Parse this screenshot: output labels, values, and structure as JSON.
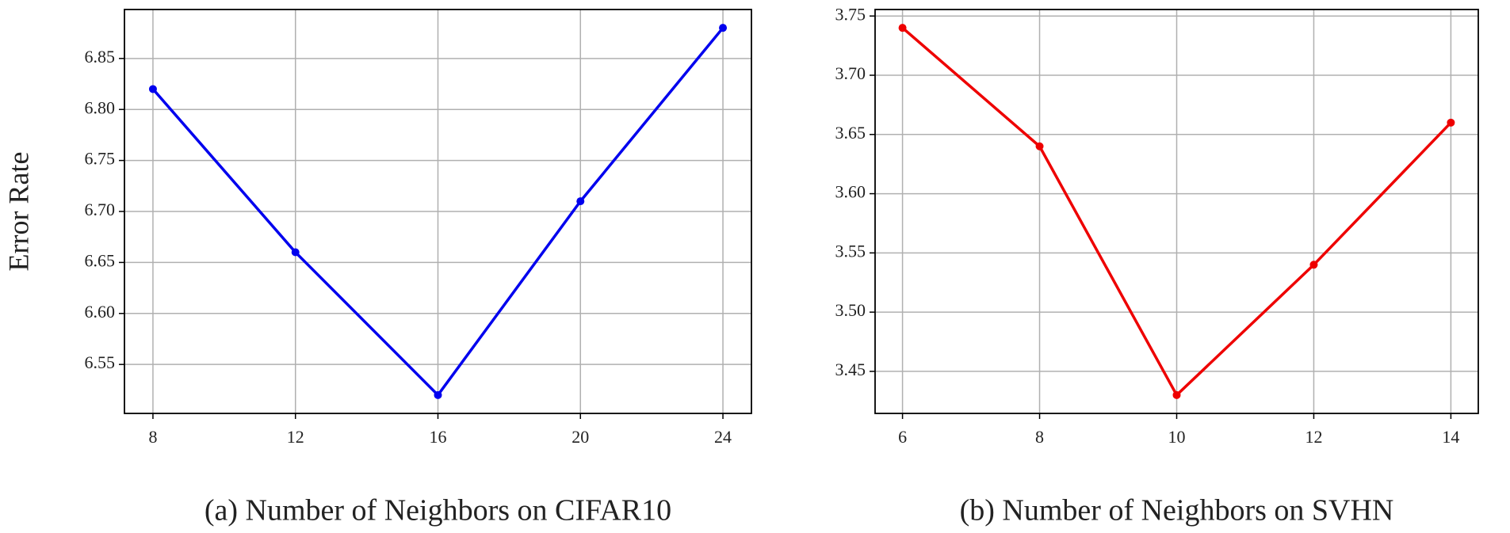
{
  "chart_data": [
    {
      "type": "line",
      "caption": "(a)  Number of Neighbors on CIFAR10",
      "y_label": "Error Rate",
      "x": [
        8,
        12,
        16,
        20,
        24
      ],
      "series": [
        {
          "color": "#0000ee",
          "values": [
            6.82,
            6.66,
            6.52,
            6.71,
            6.88
          ]
        }
      ],
      "xlim": [
        7.2,
        24.8
      ],
      "xticks": [
        8,
        12,
        16,
        20,
        24
      ],
      "ylim": [
        6.502,
        6.898
      ],
      "yticks": [
        6.55,
        {
          "value": 6.6,
          "label": "6.60"
        },
        6.65,
        {
          "value": 6.7,
          "label": "6.70"
        },
        6.75,
        {
          "value": 6.8,
          "label": "6.80"
        },
        6.85
      ],
      "grid": true
    },
    {
      "type": "line",
      "caption": "(b)  Number of Neighbors on SVHN",
      "x": [
        6,
        8,
        10,
        12,
        14
      ],
      "series": [
        {
          "color": "#ee0000",
          "values": [
            3.74,
            3.64,
            3.43,
            3.54,
            3.66
          ]
        }
      ],
      "xlim": [
        5.6,
        14.4
      ],
      "xticks": [
        6,
        8,
        10,
        12,
        14
      ],
      "ylim": [
        3.4145,
        3.7555
      ],
      "yticks": [
        3.45,
        {
          "value": 3.5,
          "label": "3.50"
        },
        3.55,
        {
          "value": 3.6,
          "label": "3.60"
        },
        3.65,
        {
          "value": 3.7,
          "label": "3.70"
        },
        3.75
      ],
      "grid": true
    }
  ]
}
